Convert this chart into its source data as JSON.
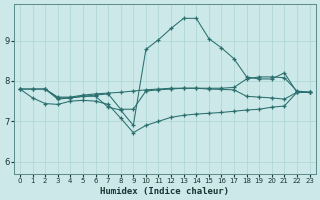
{
  "xlabel": "Humidex (Indice chaleur)",
  "bg_color": "#cce8e8",
  "grid_color": "#aad4d4",
  "line_color": "#2a6e6e",
  "xlim": [
    -0.5,
    23.5
  ],
  "ylim": [
    5.7,
    9.9
  ],
  "xticks": [
    0,
    1,
    2,
    3,
    4,
    5,
    6,
    7,
    8,
    9,
    10,
    11,
    12,
    13,
    14,
    15,
    16,
    17,
    18,
    19,
    20,
    21,
    22,
    23
  ],
  "yticks": [
    6,
    7,
    8,
    9
  ],
  "curves": [
    {
      "x": [
        0,
        1,
        2,
        3,
        4,
        5,
        6,
        7,
        8,
        9,
        10,
        11,
        12,
        13,
        14,
        15,
        16,
        17,
        18,
        19,
        20,
        21,
        22,
        23
      ],
      "y": [
        7.8,
        7.8,
        7.8,
        7.6,
        7.6,
        7.65,
        7.68,
        7.7,
        7.72,
        7.75,
        7.78,
        7.8,
        7.82,
        7.82,
        7.82,
        7.82,
        7.82,
        7.84,
        8.05,
        8.1,
        8.1,
        8.08,
        7.75,
        7.72
      ]
    },
    {
      "x": [
        0,
        1,
        2,
        3,
        4,
        5,
        6,
        7,
        8,
        9,
        10,
        11,
        12,
        13,
        14,
        15,
        16,
        17,
        18,
        19,
        20,
        21,
        22,
        23
      ],
      "y": [
        7.8,
        7.8,
        7.8,
        7.58,
        7.58,
        7.62,
        7.65,
        7.68,
        7.3,
        7.3,
        7.75,
        7.78,
        7.8,
        7.82,
        7.82,
        7.8,
        7.79,
        7.78,
        7.62,
        7.6,
        7.58,
        7.55,
        7.72,
        7.72
      ]
    },
    {
      "x": [
        2,
        3,
        4,
        5,
        6,
        7,
        8,
        9,
        10,
        11,
        12,
        13,
        14,
        15,
        16,
        17,
        18,
        19,
        20,
        21,
        22,
        23
      ],
      "y": [
        7.8,
        7.55,
        7.58,
        7.62,
        7.62,
        7.35,
        7.28,
        6.9,
        8.78,
        9.02,
        9.3,
        9.55,
        9.55,
        9.05,
        8.82,
        8.55,
        8.1,
        8.05,
        8.05,
        8.2,
        7.72,
        7.72
      ]
    },
    {
      "x": [
        0,
        1,
        2,
        3,
        4,
        5,
        6,
        7,
        8,
        9,
        10,
        11,
        12,
        13,
        14,
        15,
        16,
        17,
        18,
        19,
        20,
        21,
        22,
        23
      ],
      "y": [
        7.8,
        7.58,
        7.44,
        7.42,
        7.5,
        7.52,
        7.5,
        7.42,
        7.08,
        6.72,
        6.9,
        7.0,
        7.1,
        7.15,
        7.18,
        7.2,
        7.22,
        7.25,
        7.28,
        7.3,
        7.35,
        7.38,
        7.72,
        7.72
      ]
    }
  ]
}
